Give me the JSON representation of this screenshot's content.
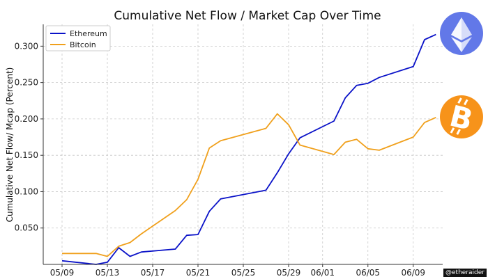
{
  "chart_data": {
    "type": "line",
    "title": "Cumulative Net Flow / Market Cap Over Time",
    "xlabel": "",
    "ylabel": "Cumulative Net Flow/ Mcap (Percent)",
    "x_tick_labels": [
      "05/09",
      "05/13",
      "05/17",
      "05/21",
      "05/25",
      "05/29",
      "06/01",
      "06/05",
      "06/09"
    ],
    "y_tick_labels": [
      "0.050",
      "0.100",
      "0.150",
      "0.200",
      "0.250",
      "0.300"
    ],
    "ylim": [
      0.0,
      0.33
    ],
    "grid": true,
    "legend_position": "top-left",
    "series": [
      {
        "name": "Ethereum",
        "color": "#0a12c8",
        "points": [
          [
            "05/09",
            0.005
          ],
          [
            "05/12",
            0.0
          ],
          [
            "05/13",
            0.003
          ],
          [
            "05/14",
            0.023
          ],
          [
            "05/15",
            0.011
          ],
          [
            "05/16",
            0.017
          ],
          [
            "05/19",
            0.021
          ],
          [
            "05/20",
            0.04
          ],
          [
            "05/21",
            0.041
          ],
          [
            "05/22",
            0.073
          ],
          [
            "05/23",
            0.09
          ],
          [
            "05/27",
            0.102
          ],
          [
            "05/28",
            0.126
          ],
          [
            "05/29",
            0.152
          ],
          [
            "05/30",
            0.174
          ],
          [
            "06/02",
            0.197
          ],
          [
            "06/03",
            0.229
          ],
          [
            "06/04",
            0.246
          ],
          [
            "06/05",
            0.249
          ],
          [
            "06/06",
            0.257
          ],
          [
            "06/09",
            0.272
          ],
          [
            "06/10",
            0.309
          ],
          [
            "06/11",
            0.316
          ]
        ]
      },
      {
        "name": "Bitcoin",
        "color": "#f0a01c",
        "points": [
          [
            "05/09",
            0.015
          ],
          [
            "05/12",
            0.015
          ],
          [
            "05/13",
            0.011
          ],
          [
            "05/14",
            0.025
          ],
          [
            "05/15",
            0.03
          ],
          [
            "05/16",
            0.042
          ],
          [
            "05/19",
            0.074
          ],
          [
            "05/20",
            0.089
          ],
          [
            "05/21",
            0.117
          ],
          [
            "05/22",
            0.16
          ],
          [
            "05/23",
            0.17
          ],
          [
            "05/27",
            0.187
          ],
          [
            "05/28",
            0.207
          ],
          [
            "05/29",
            0.192
          ],
          [
            "05/30",
            0.164
          ],
          [
            "06/02",
            0.151
          ],
          [
            "06/03",
            0.168
          ],
          [
            "06/04",
            0.172
          ],
          [
            "06/05",
            0.159
          ],
          [
            "06/06",
            0.157
          ],
          [
            "06/09",
            0.175
          ],
          [
            "06/10",
            0.195
          ],
          [
            "06/11",
            0.202
          ]
        ]
      }
    ],
    "logos": [
      {
        "name": "ethereum-logo",
        "color": "#6278e8"
      },
      {
        "name": "bitcoin-logo",
        "color": "#f7931a"
      }
    ]
  },
  "watermark": "@etheraider"
}
